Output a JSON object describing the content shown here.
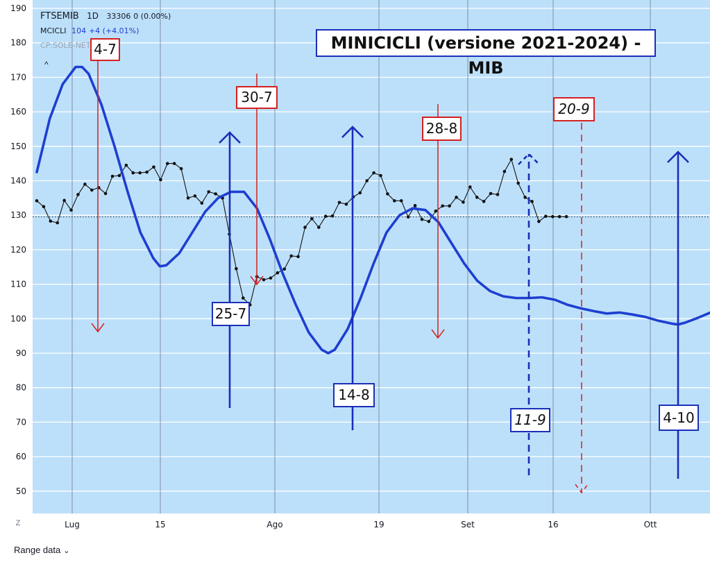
{
  "legend": {
    "symbol": "FTSEMIB",
    "interval": "1D",
    "price": "33306",
    "change": "0 (0.00%)",
    "indicator_name": "MCICLI",
    "indicator_value": "104",
    "indicator_change": "+4 (+4.01%)",
    "source": "CP:SOLE-NET"
  },
  "title": "MINICICLI (versione 2021-2024) - MIB",
  "range_data_label": "Range data",
  "z_label": "Z",
  "colors": {
    "background": "#bde0fa",
    "cycle_line": "#1e3fd0",
    "price_line": "#111111",
    "red_marker": "#d42020",
    "blue_marker": "#1a2fb8"
  },
  "chart_data": {
    "type": "line",
    "x_ticks": [
      "Lug",
      "15",
      "Ago",
      "19",
      "Set",
      "16",
      "Ott"
    ],
    "y_ticks": [
      50,
      60,
      70,
      80,
      90,
      100,
      110,
      120,
      130,
      140,
      150,
      160,
      170,
      180,
      190
    ],
    "ylim": [
      45,
      190
    ],
    "reference_line": 129.5,
    "grid": true,
    "series": [
      {
        "values": [
          [
            0,
            142.5
          ],
          [
            2,
            158
          ],
          [
            4,
            168
          ],
          [
            6,
            173
          ],
          [
            7,
            173
          ],
          [
            8,
            171
          ],
          [
            10,
            162
          ],
          [
            12,
            150
          ],
          [
            14,
            137
          ],
          [
            16,
            125
          ],
          [
            18,
            117.5
          ],
          [
            19,
            115.2
          ],
          [
            20,
            115.5
          ],
          [
            22,
            119
          ],
          [
            24,
            125
          ],
          [
            26,
            131
          ],
          [
            28,
            135
          ],
          [
            30,
            136.8
          ],
          [
            32,
            136.8
          ],
          [
            34,
            132
          ],
          [
            36,
            123
          ],
          [
            38,
            113
          ],
          [
            40,
            104
          ],
          [
            42,
            96
          ],
          [
            44,
            91
          ],
          [
            45,
            90
          ],
          [
            46,
            91
          ],
          [
            48,
            97
          ],
          [
            50,
            106
          ],
          [
            52,
            116
          ],
          [
            54,
            125
          ],
          [
            56,
            130
          ],
          [
            58,
            132
          ],
          [
            60,
            131.5
          ],
          [
            62,
            128
          ],
          [
            64,
            122
          ],
          [
            66,
            116
          ],
          [
            68,
            111
          ],
          [
            70,
            108
          ],
          [
            72,
            106.5
          ],
          [
            74,
            106
          ],
          [
            76,
            106
          ],
          [
            78,
            106.2
          ],
          [
            80,
            105.5
          ],
          [
            82,
            104
          ],
          [
            84,
            103
          ],
          [
            86,
            102.2
          ],
          [
            88,
            101.5
          ],
          [
            90,
            101.8
          ],
          [
            92,
            101.2
          ],
          [
            94,
            100.5
          ],
          [
            96,
            99.4
          ],
          [
            98,
            98.6
          ],
          [
            99,
            98.3
          ],
          [
            100,
            98.8
          ],
          [
            102,
            100.2
          ],
          [
            104,
            101.8
          ]
        ]
      },
      {
        "values": [
          [
            0,
            134.2
          ],
          [
            1,
            132.5
          ],
          [
            2,
            128.3
          ],
          [
            3,
            127.8
          ],
          [
            4,
            134.3
          ],
          [
            5,
            131.5
          ],
          [
            6,
            136
          ],
          [
            7,
            139
          ],
          [
            8,
            137.3
          ],
          [
            9,
            138
          ],
          [
            10,
            136.3
          ],
          [
            11,
            141.3
          ],
          [
            12,
            141.5
          ],
          [
            13,
            144.5
          ],
          [
            14,
            142.3
          ],
          [
            15,
            142.3
          ],
          [
            16,
            142.5
          ],
          [
            17,
            144
          ],
          [
            18,
            140.3
          ],
          [
            19,
            145
          ],
          [
            20,
            145
          ],
          [
            21,
            143.5
          ],
          [
            22,
            135
          ],
          [
            23,
            135.6
          ],
          [
            24,
            133.5
          ],
          [
            25,
            136.8
          ],
          [
            26,
            136.2
          ],
          [
            27,
            135
          ],
          [
            28,
            124.5
          ],
          [
            29,
            114.5
          ],
          [
            30,
            106
          ],
          [
            31,
            104
          ],
          [
            32,
            112.2
          ],
          [
            33,
            111.3
          ],
          [
            34,
            111.8
          ],
          [
            35,
            113.3
          ],
          [
            36,
            114.4
          ],
          [
            37,
            118.2
          ],
          [
            38,
            118
          ],
          [
            39,
            126.5
          ],
          [
            40,
            129
          ],
          [
            41,
            126.5
          ],
          [
            42,
            129.7
          ],
          [
            43,
            129.8
          ],
          [
            44,
            133.7
          ],
          [
            45,
            133.2
          ],
          [
            46,
            135.3
          ],
          [
            47,
            136.5
          ],
          [
            48,
            140
          ],
          [
            49,
            142.3
          ],
          [
            50,
            141.5
          ],
          [
            51,
            136.2
          ],
          [
            52,
            134.2
          ],
          [
            53,
            134.2
          ],
          [
            54,
            129.5
          ],
          [
            55,
            132.8
          ],
          [
            56,
            128.8
          ],
          [
            57,
            128.2
          ],
          [
            58,
            131.2
          ],
          [
            59,
            132.7
          ],
          [
            60,
            132.7
          ],
          [
            61,
            135.2
          ],
          [
            62,
            133.8
          ],
          [
            63,
            138.2
          ],
          [
            64,
            135.2
          ],
          [
            65,
            134
          ],
          [
            66,
            136.3
          ],
          [
            67,
            136
          ],
          [
            68,
            142.7
          ],
          [
            69,
            146.2
          ],
          [
            70,
            139.3
          ],
          [
            71,
            135.2
          ],
          [
            72,
            134
          ],
          [
            73,
            128.2
          ],
          [
            74,
            129.7
          ],
          [
            75,
            129.6
          ],
          [
            76,
            129.6
          ],
          [
            77,
            129.6
          ]
        ]
      }
    ],
    "cycle_markers": [
      {
        "label": "4-7",
        "color": "red",
        "direction": "down",
        "style": "solid"
      },
      {
        "label": "25-7",
        "color": "blue",
        "direction": "up",
        "style": "solid"
      },
      {
        "label": "30-7",
        "color": "red",
        "direction": "down",
        "style": "solid"
      },
      {
        "label": "14-8",
        "color": "blue",
        "direction": "up",
        "style": "solid"
      },
      {
        "label": "28-8",
        "color": "red",
        "direction": "down",
        "style": "solid"
      },
      {
        "label": "11-9",
        "color": "blue",
        "direction": "up",
        "style": "dashed"
      },
      {
        "label": "20-9",
        "color": "red",
        "direction": "down",
        "style": "dashed"
      },
      {
        "label": "4-10",
        "color": "blue",
        "direction": "up",
        "style": "solid"
      }
    ]
  }
}
